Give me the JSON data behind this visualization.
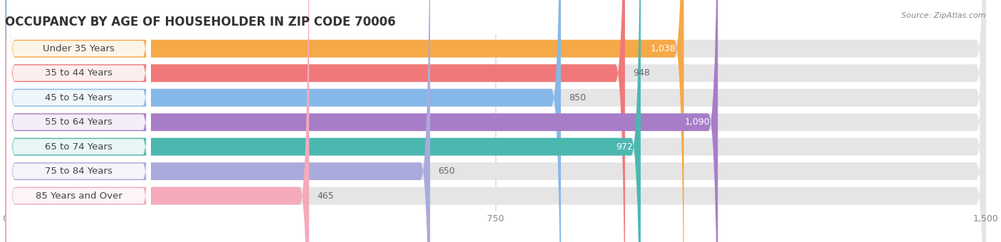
{
  "title": "OCCUPANCY BY AGE OF HOUSEHOLDER IN ZIP CODE 70006",
  "source": "Source: ZipAtlas.com",
  "categories": [
    "Under 35 Years",
    "35 to 44 Years",
    "45 to 54 Years",
    "55 to 64 Years",
    "65 to 74 Years",
    "75 to 84 Years",
    "85 Years and Over"
  ],
  "values": [
    1038,
    948,
    850,
    1090,
    972,
    650,
    465
  ],
  "bar_colors": [
    "#F5A947",
    "#F07878",
    "#85B8E8",
    "#A87DC8",
    "#4BB8B0",
    "#AAAADD",
    "#F5AABC"
  ],
  "xlim": [
    0,
    1500
  ],
  "xticks": [
    0,
    750,
    1500
  ],
  "bar_bg_color": "#e5e5e5",
  "title_fontsize": 12,
  "label_fontsize": 9.5,
  "value_fontsize": 9
}
